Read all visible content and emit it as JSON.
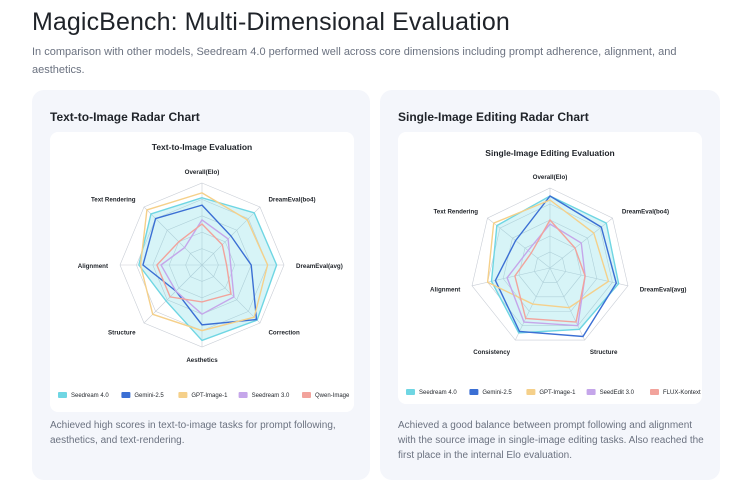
{
  "page": {
    "title": "MagicBench: Multi-Dimensional Evaluation",
    "subtitle": "In comparison with other models, Seedream 4.0 performed well across core dimensions including prompt adherence, alignment, and aesthetics."
  },
  "cards": [
    {
      "title": "Text-to-Image Radar Chart",
      "description": "Achieved high scores in text-to-image tasks for prompt following, aesthetics, and text-rendering."
    },
    {
      "title": "Single-Image Editing Radar Chart",
      "description": "Achieved a good balance between prompt following and alignment with the source image in single-image editing tasks. Also reached the first place in the internal Elo evaluation."
    }
  ],
  "chart_data": [
    {
      "type": "radar",
      "title": "Text-to-Image Evaluation",
      "axes": [
        "Overall(Elo)",
        "DreamEval(bo4)",
        "DreamEval(avg)",
        "Correction",
        "Aesthetics",
        "Structure",
        "Alignment",
        "Text Rendering"
      ],
      "rmax": 1.0,
      "rings": 5,
      "legend": "bottom",
      "series": [
        {
          "name": "Seedream 4.0",
          "color": "#6fd6e3",
          "fill": true,
          "values": [
            0.82,
            0.9,
            0.91,
            0.95,
            0.92,
            0.62,
            0.77,
            0.88
          ]
        },
        {
          "name": "Gemini-2.5",
          "color": "#3b6fd4",
          "fill": false,
          "values": [
            0.73,
            0.5,
            0.6,
            0.94,
            0.73,
            0.45,
            0.72,
            0.8
          ]
        },
        {
          "name": "GPT-Image-1",
          "color": "#f5d08a",
          "fill": false,
          "values": [
            0.88,
            0.78,
            0.8,
            0.9,
            0.8,
            0.85,
            0.75,
            0.95
          ]
        },
        {
          "name": "Seedream 3.0",
          "color": "#c5a6ea",
          "fill": false,
          "values": [
            0.55,
            0.45,
            0.35,
            0.55,
            0.6,
            0.45,
            0.5,
            0.3
          ]
        },
        {
          "name": "Qwen-Image",
          "color": "#f2a39c",
          "fill": false,
          "values": [
            0.5,
            0.35,
            0.3,
            0.5,
            0.45,
            0.55,
            0.55,
            0.4
          ]
        }
      ]
    },
    {
      "type": "radar",
      "title": "Single-Image Editing Evaluation",
      "axes": [
        "Overall(Elo)",
        "DreamEval(bo4)",
        "DreamEval(avg)",
        "Structure",
        "Consistency",
        "Alignment",
        "Text Rendering"
      ],
      "rmax": 1.0,
      "rings": 5,
      "legend": "bottom",
      "series": [
        {
          "name": "Seedream 4.0",
          "color": "#6fd6e3",
          "fill": true,
          "values": [
            0.9,
            0.9,
            0.88,
            0.85,
            0.9,
            0.75,
            0.85
          ]
        },
        {
          "name": "Gemini-2.5",
          "color": "#3b6fd4",
          "fill": false,
          "values": [
            0.9,
            0.82,
            0.85,
            0.95,
            0.88,
            0.7,
            0.55
          ]
        },
        {
          "name": "GPT-Image-1",
          "color": "#f5d08a",
          "fill": false,
          "values": [
            0.85,
            0.7,
            0.75,
            0.55,
            0.5,
            0.8,
            0.9
          ]
        },
        {
          "name": "SeedEdit 3.0",
          "color": "#c5a6ea",
          "fill": false,
          "values": [
            0.55,
            0.5,
            0.45,
            0.8,
            0.75,
            0.55,
            0.35
          ]
        },
        {
          "name": "FLUX-Kontext",
          "color": "#f2a39c",
          "fill": false,
          "values": [
            0.6,
            0.4,
            0.45,
            0.75,
            0.7,
            0.45,
            0.3
          ]
        }
      ]
    }
  ]
}
